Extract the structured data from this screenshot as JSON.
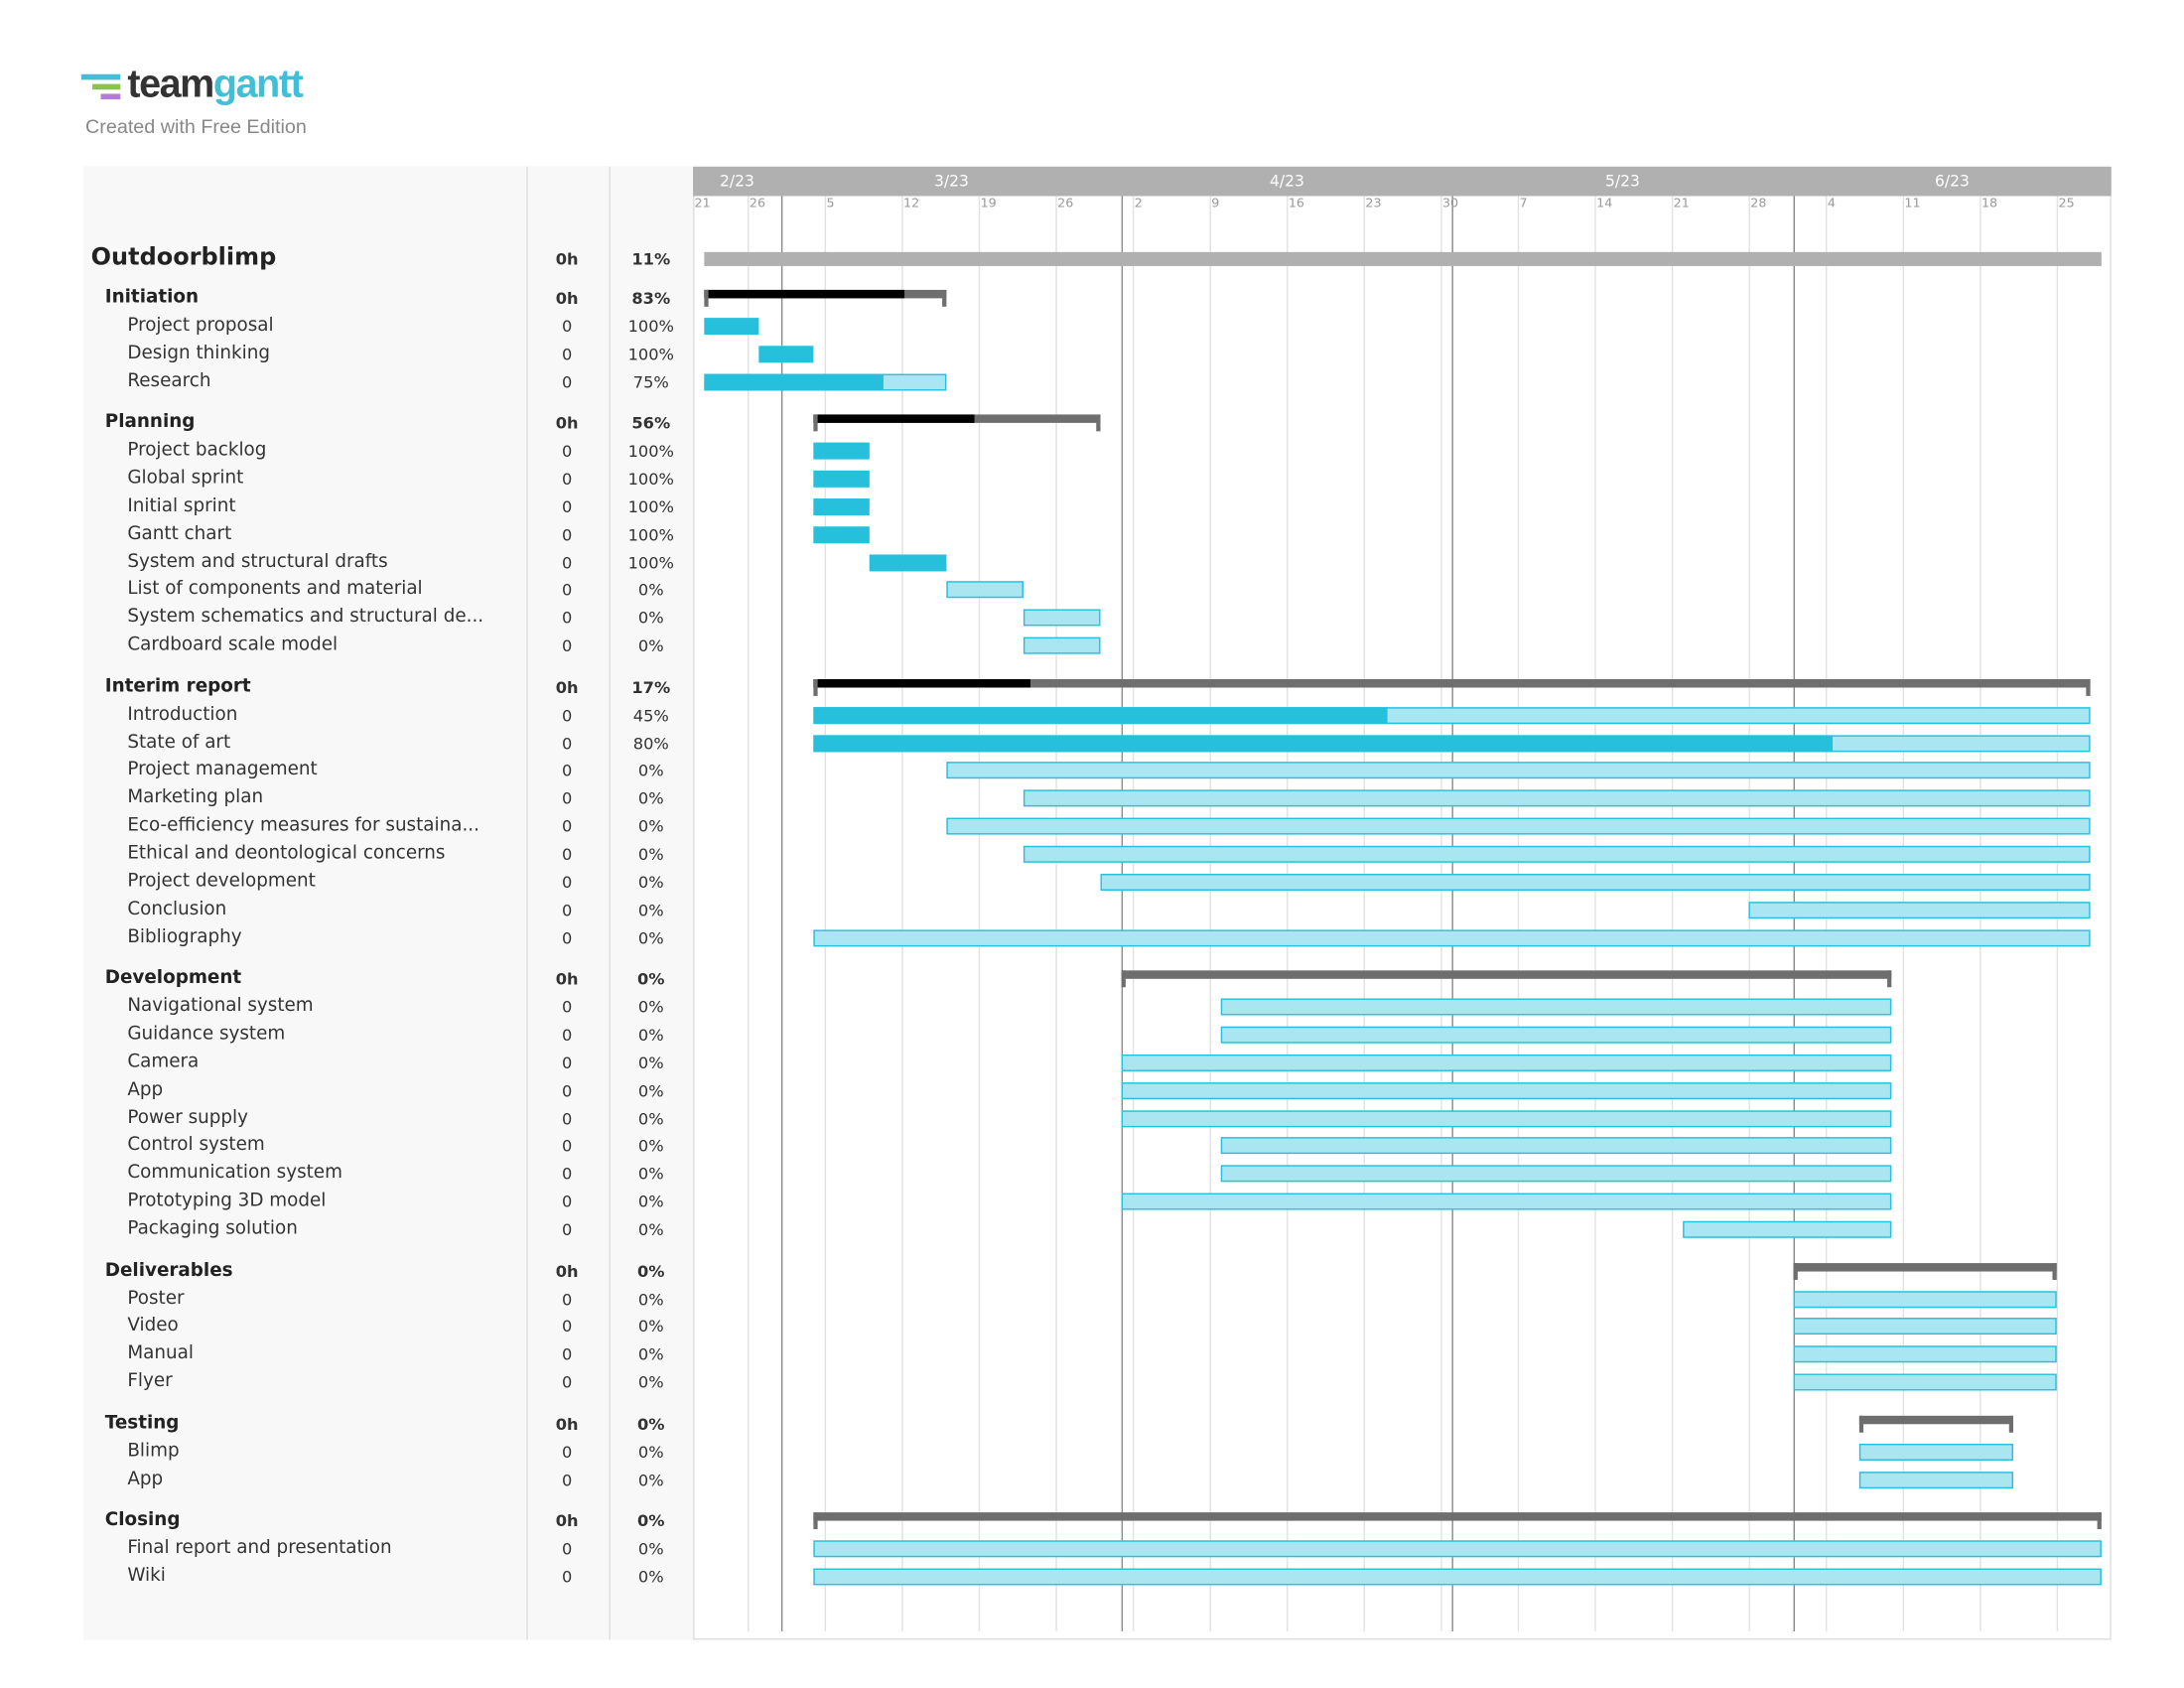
{
  "branding": {
    "logo_text_dark": "team",
    "logo_text_light": "gantt",
    "subtitle": "Created with Free Edition",
    "colors": {
      "cyan": "#3fbfd8",
      "green": "#8bc34a",
      "purple": "#b57bd8",
      "dark": "#333333"
    }
  },
  "colors": {
    "complete": "#26bfdc",
    "incomplete": "#a9e6f2",
    "summary_done": "#000000",
    "summary_remaining": "#6e6e6e",
    "project_bar": "#b0b0b0",
    "header": "#b0b0b0"
  },
  "timeline": {
    "range": [
      "2023-02-21",
      "2023-06-29"
    ],
    "months": [
      {
        "label": "2/23",
        "start": "2023-02-01"
      },
      {
        "label": "3/23",
        "start": "2023-03-01"
      },
      {
        "label": "4/23",
        "start": "2023-04-01"
      },
      {
        "label": "5/23",
        "start": "2023-05-01"
      },
      {
        "label": "6/23",
        "start": "2023-06-01"
      }
    ],
    "weeks": [
      {
        "label": "21",
        "date": "2023-02-21"
      },
      {
        "label": "26",
        "date": "2023-02-26"
      },
      {
        "label": "5",
        "date": "2023-03-05"
      },
      {
        "label": "12",
        "date": "2023-03-12"
      },
      {
        "label": "19",
        "date": "2023-03-19"
      },
      {
        "label": "26",
        "date": "2023-03-26"
      },
      {
        "label": "2",
        "date": "2023-04-02"
      },
      {
        "label": "9",
        "date": "2023-04-09"
      },
      {
        "label": "16",
        "date": "2023-04-16"
      },
      {
        "label": "23",
        "date": "2023-04-23"
      },
      {
        "label": "30",
        "date": "2023-04-30"
      },
      {
        "label": "7",
        "date": "2023-05-07"
      },
      {
        "label": "14",
        "date": "2023-05-14"
      },
      {
        "label": "21",
        "date": "2023-05-21"
      },
      {
        "label": "28",
        "date": "2023-05-28"
      },
      {
        "label": "4",
        "date": "2023-06-04"
      },
      {
        "label": "11",
        "date": "2023-06-11"
      },
      {
        "label": "18",
        "date": "2023-06-18"
      },
      {
        "label": "25",
        "date": "2023-06-25"
      }
    ]
  },
  "project": {
    "name": "Outdoorblimp",
    "hours": "0h",
    "percent": "11%",
    "progress": 11,
    "start": "2023-02-22",
    "end": "2023-06-28"
  },
  "groups": [
    {
      "name": "Initiation",
      "hours": "0h",
      "percent": "83%",
      "progress": 83,
      "start": "2023-02-22",
      "end": "2023-03-15",
      "tasks": [
        {
          "name": "Project proposal",
          "hours": "0",
          "percent": "100%",
          "progress": 100,
          "start": "2023-02-22",
          "end": "2023-02-26"
        },
        {
          "name": "Design thinking",
          "hours": "0",
          "percent": "100%",
          "progress": 100,
          "start": "2023-02-27",
          "end": "2023-03-03"
        },
        {
          "name": "Research",
          "hours": "0",
          "percent": "75%",
          "progress": 75,
          "start": "2023-02-22",
          "end": "2023-03-15"
        }
      ]
    },
    {
      "name": "Planning",
      "hours": "0h",
      "percent": "56%",
      "progress": 56,
      "start": "2023-03-04",
      "end": "2023-03-29",
      "tasks": [
        {
          "name": "Project backlog",
          "hours": "0",
          "percent": "100%",
          "progress": 100,
          "start": "2023-03-04",
          "end": "2023-03-08"
        },
        {
          "name": "Global sprint",
          "hours": "0",
          "percent": "100%",
          "progress": 100,
          "start": "2023-03-04",
          "end": "2023-03-08"
        },
        {
          "name": "Initial sprint",
          "hours": "0",
          "percent": "100%",
          "progress": 100,
          "start": "2023-03-04",
          "end": "2023-03-08"
        },
        {
          "name": "Gantt chart",
          "hours": "0",
          "percent": "100%",
          "progress": 100,
          "start": "2023-03-04",
          "end": "2023-03-08"
        },
        {
          "name": "System and structural drafts",
          "hours": "0",
          "percent": "100%",
          "progress": 100,
          "start": "2023-03-09",
          "end": "2023-03-15"
        },
        {
          "name": "List of components and material",
          "hours": "0",
          "percent": "0%",
          "progress": 0,
          "start": "2023-03-16",
          "end": "2023-03-22"
        },
        {
          "name": "System schematics and structural de...",
          "hours": "0",
          "percent": "0%",
          "progress": 0,
          "start": "2023-03-23",
          "end": "2023-03-29"
        },
        {
          "name": "Cardboard scale model",
          "hours": "0",
          "percent": "0%",
          "progress": 0,
          "start": "2023-03-23",
          "end": "2023-03-29"
        }
      ]
    },
    {
      "name": "Interim report",
      "hours": "0h",
      "percent": "17%",
      "progress": 17,
      "start": "2023-03-04",
      "end": "2023-06-27",
      "tasks": [
        {
          "name": "Introduction",
          "hours": "0",
          "percent": "45%",
          "progress": 45,
          "start": "2023-03-04",
          "end": "2023-06-27"
        },
        {
          "name": "State of art",
          "hours": "0",
          "percent": "80%",
          "progress": 80,
          "start": "2023-03-04",
          "end": "2023-06-27"
        },
        {
          "name": "Project management",
          "hours": "0",
          "percent": "0%",
          "progress": 0,
          "start": "2023-03-16",
          "end": "2023-06-27"
        },
        {
          "name": "Marketing plan",
          "hours": "0",
          "percent": "0%",
          "progress": 0,
          "start": "2023-03-23",
          "end": "2023-06-27"
        },
        {
          "name": "Eco-efficiency measures for sustaina...",
          "hours": "0",
          "percent": "0%",
          "progress": 0,
          "start": "2023-03-16",
          "end": "2023-06-27"
        },
        {
          "name": "Ethical and deontological concerns",
          "hours": "0",
          "percent": "0%",
          "progress": 0,
          "start": "2023-03-23",
          "end": "2023-06-27"
        },
        {
          "name": "Project development",
          "hours": "0",
          "percent": "0%",
          "progress": 0,
          "start": "2023-03-30",
          "end": "2023-06-27"
        },
        {
          "name": "Conclusion",
          "hours": "0",
          "percent": "0%",
          "progress": 0,
          "start": "2023-05-28",
          "end": "2023-06-27"
        },
        {
          "name": "Bibliography",
          "hours": "0",
          "percent": "0%",
          "progress": 0,
          "start": "2023-03-04",
          "end": "2023-06-27"
        }
      ]
    },
    {
      "name": "Development",
      "hours": "0h",
      "percent": "0%",
      "progress": 0,
      "start": "2023-04-01",
      "end": "2023-06-09",
      "tasks": [
        {
          "name": "Navigational system",
          "hours": "0",
          "percent": "0%",
          "progress": 0,
          "start": "2023-04-10",
          "end": "2023-06-09"
        },
        {
          "name": "Guidance system",
          "hours": "0",
          "percent": "0%",
          "progress": 0,
          "start": "2023-04-10",
          "end": "2023-06-09"
        },
        {
          "name": "Camera",
          "hours": "0",
          "percent": "0%",
          "progress": 0,
          "start": "2023-04-01",
          "end": "2023-06-09"
        },
        {
          "name": "App",
          "hours": "0",
          "percent": "0%",
          "progress": 0,
          "start": "2023-04-01",
          "end": "2023-06-09"
        },
        {
          "name": "Power supply",
          "hours": "0",
          "percent": "0%",
          "progress": 0,
          "start": "2023-04-01",
          "end": "2023-06-09"
        },
        {
          "name": "Control system",
          "hours": "0",
          "percent": "0%",
          "progress": 0,
          "start": "2023-04-10",
          "end": "2023-06-09"
        },
        {
          "name": "Communication system",
          "hours": "0",
          "percent": "0%",
          "progress": 0,
          "start": "2023-04-10",
          "end": "2023-06-09"
        },
        {
          "name": "Prototyping 3D model",
          "hours": "0",
          "percent": "0%",
          "progress": 0,
          "start": "2023-04-01",
          "end": "2023-06-09"
        },
        {
          "name": "Packaging solution",
          "hours": "0",
          "percent": "0%",
          "progress": 0,
          "start": "2023-05-22",
          "end": "2023-06-09"
        }
      ]
    },
    {
      "name": "Deliverables",
      "hours": "0h",
      "percent": "0%",
      "progress": 0,
      "start": "2023-06-01",
      "end": "2023-06-24",
      "tasks": [
        {
          "name": "Poster",
          "hours": "0",
          "percent": "0%",
          "progress": 0,
          "start": "2023-06-01",
          "end": "2023-06-24"
        },
        {
          "name": "Video",
          "hours": "0",
          "percent": "0%",
          "progress": 0,
          "start": "2023-06-01",
          "end": "2023-06-24"
        },
        {
          "name": "Manual",
          "hours": "0",
          "percent": "0%",
          "progress": 0,
          "start": "2023-06-01",
          "end": "2023-06-24"
        },
        {
          "name": "Flyer",
          "hours": "0",
          "percent": "0%",
          "progress": 0,
          "start": "2023-06-01",
          "end": "2023-06-24"
        }
      ]
    },
    {
      "name": "Testing",
      "hours": "0h",
      "percent": "0%",
      "progress": 0,
      "start": "2023-06-07",
      "end": "2023-06-20",
      "tasks": [
        {
          "name": "Blimp",
          "hours": "0",
          "percent": "0%",
          "progress": 0,
          "start": "2023-06-07",
          "end": "2023-06-20"
        },
        {
          "name": "App",
          "hours": "0",
          "percent": "0%",
          "progress": 0,
          "start": "2023-06-07",
          "end": "2023-06-20"
        }
      ]
    },
    {
      "name": "Closing",
      "hours": "0h",
      "percent": "0%",
      "progress": 0,
      "start": "2023-03-04",
      "end": "2023-06-28",
      "tasks": [
        {
          "name": "Final report and presentation",
          "hours": "0",
          "percent": "0%",
          "progress": 0,
          "start": "2023-03-04",
          "end": "2023-06-28"
        },
        {
          "name": "Wiki",
          "hours": "0",
          "percent": "0%",
          "progress": 0,
          "start": "2023-03-04",
          "end": "2023-06-28"
        }
      ]
    }
  ]
}
